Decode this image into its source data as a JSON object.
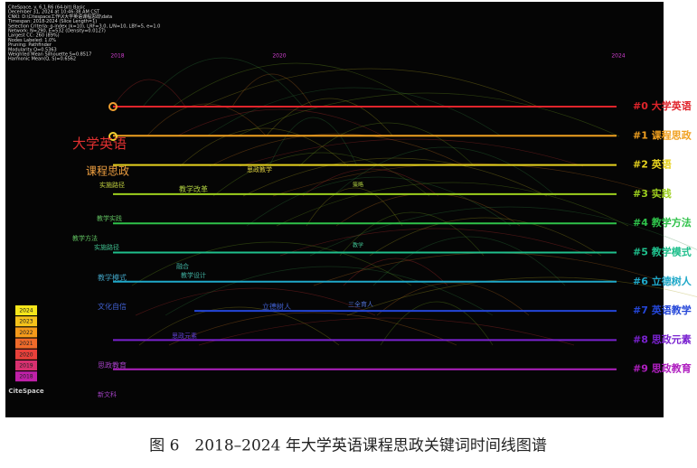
{
  "header": {
    "lines": [
      "CiteSpace, v. 6.1.R6 (64-bit) Basic",
      "December 31, 2024 at 10:46:38 AM CST",
      "CNKI: D:\\Citespace工作\\X大学英语课程思政\\data",
      "Timespan: 2018-2024 (Slice Length=1)",
      "Selection Criteria: g-index (k=10), LRF=3.0, L/N=10, LBY=5, e=1.0",
      "Network: N=290, E=532 (Density=0.0127)",
      "Largest CC: 260 (89%)",
      "Nodes Labeled: 1.0%",
      "Pruning: Pathfinder",
      "Modularity Q=0.5363",
      "Weighted Mean Silhouette S=0.8517",
      "Harmonic Mean(Q, S)=0.6562"
    ]
  },
  "timeline": {
    "years": [
      "2018",
      "2020",
      "2024"
    ],
    "clusters": [
      {
        "label": "#0 大学英语",
        "color": "#e0242b"
      },
      {
        "label": "#1 课程思政",
        "color": "#f0a020"
      },
      {
        "label": "#2 英语",
        "color": "#e6d21e"
      },
      {
        "label": "#3 实践",
        "color": "#9ccf1e"
      },
      {
        "label": "#4 教学方法",
        "color": "#2fc24a"
      },
      {
        "label": "#5 教学模式",
        "color": "#1fbf8c"
      },
      {
        "label": "#6 立德树人",
        "color": "#1fa8c8"
      },
      {
        "label": "#7 英语教学",
        "color": "#2446d8"
      },
      {
        "label": "#8 思政元素",
        "color": "#7a22d0"
      },
      {
        "label": "#9 思政教育",
        "color": "#b020c0"
      }
    ],
    "keywords": [
      "大学英语",
      "课程思政",
      "思政教学",
      "实施路径",
      "教学改革",
      "教学实践",
      "教学方法",
      "实施路径",
      "融合",
      "教学设计",
      "教学模式",
      "文化自信",
      "立德树人",
      "三全育人",
      "思政元素",
      "思政教育",
      "新文科",
      "策略",
      "教学"
    ]
  },
  "legend": {
    "years": [
      "2024",
      "2023",
      "2022",
      "2021",
      "2020",
      "2019",
      "2018"
    ],
    "colors": [
      "#f5e61a",
      "#f5c21a",
      "#f59a1a",
      "#f06a2a",
      "#e8403a",
      "#d83070",
      "#c020a8"
    ],
    "logo": "CiteSpace"
  },
  "caption": "图 6　2018–2024 年大学英语课程思政关键词时间线图谱"
}
